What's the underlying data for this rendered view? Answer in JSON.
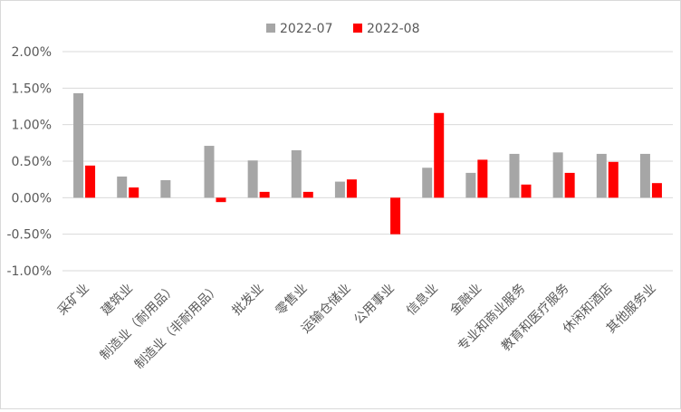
{
  "chart_data": {
    "type": "bar",
    "categories": [
      "采矿业",
      "建筑业",
      "制造业（耐用品）",
      "制造业（非耐用品）",
      "批发业",
      "零售业",
      "运输仓储业",
      "公用事业",
      "信息业",
      "金融业",
      "专业和商业服务",
      "教育和医疗服务",
      "休闲和酒店",
      "其他服务业"
    ],
    "series": [
      {
        "name": "2022-07",
        "color": "#a6a6a6",
        "values": [
          1.43,
          0.29,
          0.24,
          0.71,
          0.51,
          0.65,
          0.22,
          0.0,
          0.41,
          0.34,
          0.6,
          0.62,
          0.6,
          0.6
        ]
      },
      {
        "name": "2022-08",
        "color": "#ff0000",
        "values": [
          0.44,
          0.14,
          0.0,
          -0.06,
          0.08,
          0.08,
          0.25,
          -0.5,
          1.16,
          0.52,
          0.18,
          0.34,
          0.49,
          0.2
        ]
      }
    ],
    "yticks": [
      "2.00%",
      "1.50%",
      "1.00%",
      "0.50%",
      "0.00%",
      "-0.50%",
      "-1.00%"
    ],
    "ytick_values": [
      2.0,
      1.5,
      1.0,
      0.5,
      0.0,
      -0.5,
      -1.0
    ],
    "ylim": [
      -1.0,
      2.0
    ],
    "grid": true,
    "legend_position": "top-center"
  }
}
